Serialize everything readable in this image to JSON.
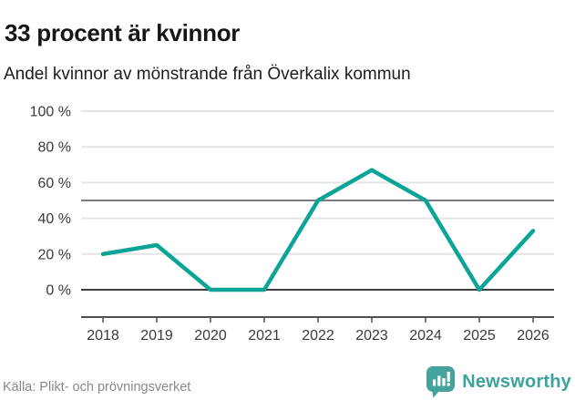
{
  "header": {
    "title": "33 procent är kvinnor",
    "subtitle": "Andel kvinnor av mönstrande från Överkalix kommun"
  },
  "footer": {
    "source": "Källa: Plikt- och prövningsverket",
    "brand_name": "Newsworthy",
    "brand_icon": "bar-chart-speech-bubble-icon"
  },
  "colors": {
    "line": "#0ca496",
    "grid": "#e4e4e4",
    "reference_line": "#7a7a7f",
    "zero_line": "#3f3f3f",
    "axis": "#4f4f4f",
    "tick_text": "#3a3a3a",
    "brand_teal": "#3ba39b",
    "source_text": "#898989"
  },
  "chart_data": {
    "type": "line",
    "title": "33 procent är kvinnor",
    "subtitle": "Andel kvinnor av mönstrande från Överkalix kommun",
    "categories": [
      "2018",
      "2019",
      "2020",
      "2021",
      "2022",
      "2023",
      "2024",
      "2025",
      "2026"
    ],
    "series": [
      {
        "name": "Andel kvinnor av mönstrande",
        "values": [
          20,
          25,
          0,
          0,
          50,
          67,
          50,
          0,
          33
        ]
      }
    ],
    "ylim": [
      0,
      100
    ],
    "yticks": [
      {
        "value": 0,
        "label": "0 %"
      },
      {
        "value": 20,
        "label": "20 %"
      },
      {
        "value": 40,
        "label": "40 %"
      },
      {
        "value": 60,
        "label": "60 %"
      },
      {
        "value": 80,
        "label": "80 %"
      },
      {
        "value": 100,
        "label": "100 %"
      }
    ],
    "reference_line": 50,
    "grid": "horizontal",
    "legend": "none",
    "line_color": "#0ca496"
  }
}
